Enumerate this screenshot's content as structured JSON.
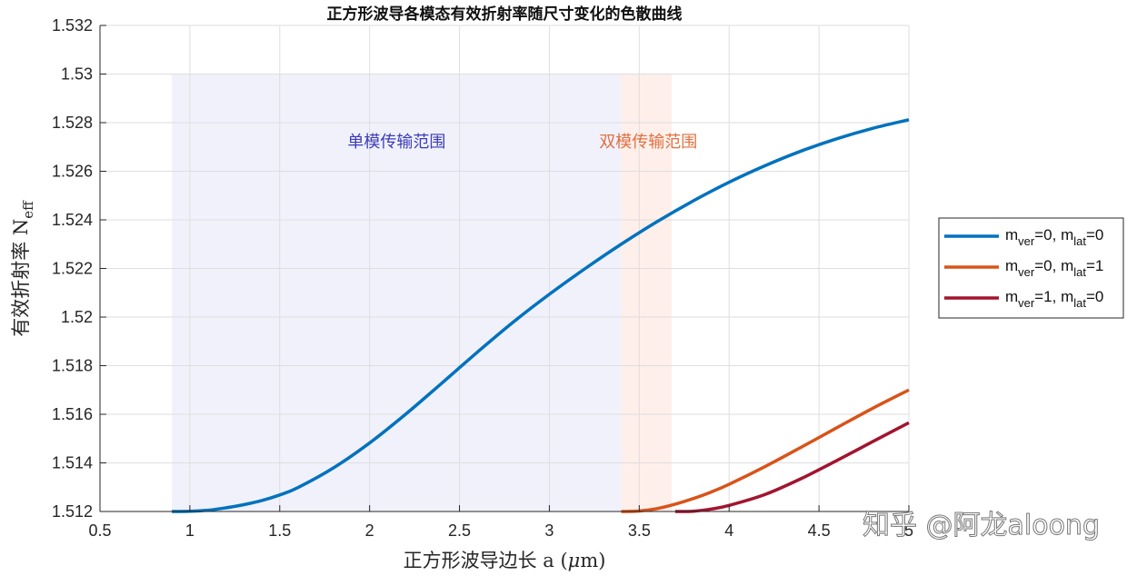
{
  "chart_data": {
    "type": "line",
    "title": "正方形波导各模态有效折射率随尺寸变化的色散曲线",
    "xlabel_text": "正方形波导边长 a (",
    "xlabel_mu": "μ",
    "xlabel_unit": "m)",
    "ylabel_text": "有效折射率 N",
    "ylabel_sub": "eff",
    "xlim": [
      0.5,
      5
    ],
    "ylim": [
      1.512,
      1.532
    ],
    "xticks": [
      0.5,
      1,
      1.5,
      2,
      2.5,
      3,
      3.5,
      4,
      4.5,
      5
    ],
    "xtick_labels": [
      "0.5",
      "1",
      "1.5",
      "2",
      "2.5",
      "3",
      "3.5",
      "4",
      "4.5",
      "5"
    ],
    "yticks": [
      1.512,
      1.514,
      1.516,
      1.518,
      1.52,
      1.522,
      1.524,
      1.526,
      1.528,
      1.53,
      1.532
    ],
    "ytick_labels": [
      "1.512",
      "1.514",
      "1.516",
      "1.518",
      "1.52",
      "1.522",
      "1.524",
      "1.526",
      "1.528",
      "1.53",
      "1.532"
    ],
    "grid": true,
    "legend_position": "outside-right",
    "regions": [
      {
        "label": "单模传输范围",
        "x_range": [
          0.9,
          3.4
        ],
        "y_range": [
          1.512,
          1.53
        ],
        "fill": "#ececfb",
        "text_color": "#3b3bb8",
        "label_at": [
          2.15,
          1.527
        ]
      },
      {
        "label": "双模传输范围",
        "x_range": [
          3.4,
          3.68
        ],
        "y_range": [
          1.512,
          1.53
        ],
        "fill": "#fde9e4",
        "text_color": "#e07040",
        "label_at": [
          3.55,
          1.527
        ]
      }
    ],
    "series": [
      {
        "name": "m_ver=0, m_lat=0",
        "name_parts": [
          "m",
          "ver",
          "=0, m",
          "lat",
          "=0"
        ],
        "color": "#0072bd",
        "x": [
          0.9,
          1.0,
          1.1,
          1.2,
          1.3,
          1.4,
          1.5,
          1.6,
          1.8,
          2.0,
          2.2,
          2.4,
          2.6,
          2.8,
          3.0,
          3.2,
          3.4,
          3.6,
          3.8,
          4.0,
          4.2,
          4.4,
          4.6,
          4.8,
          5.0
        ],
        "y": [
          1.512,
          1.51201,
          1.51205,
          1.51215,
          1.51228,
          1.51245,
          1.51268,
          1.51298,
          1.5138,
          1.51482,
          1.516,
          1.51727,
          1.51856,
          1.5198,
          1.52094,
          1.522,
          1.523,
          1.52393,
          1.52478,
          1.52555,
          1.52623,
          1.52683,
          1.52734,
          1.52777,
          1.52812
        ]
      },
      {
        "name": "m_ver=0, m_lat=1",
        "name_parts": [
          "m",
          "ver",
          "=0, m",
          "lat",
          "=1"
        ],
        "color": "#d95319",
        "x": [
          3.4,
          3.5,
          3.6,
          3.7,
          3.8,
          3.9,
          4.0,
          4.2,
          4.4,
          4.6,
          4.8,
          5.0
        ],
        "y": [
          1.512,
          1.51202,
          1.51212,
          1.5123,
          1.51253,
          1.5128,
          1.51312,
          1.51385,
          1.51464,
          1.51545,
          1.51625,
          1.517
        ]
      },
      {
        "name": "m_ver=1, m_lat=0",
        "name_parts": [
          "m",
          "ver",
          "=1, m",
          "lat",
          "=0"
        ],
        "color": "#a2142f",
        "x": [
          3.7,
          3.8,
          3.9,
          4.0,
          4.2,
          4.4,
          4.6,
          4.8,
          5.0
        ],
        "y": [
          1.512,
          1.51201,
          1.5121,
          1.51225,
          1.5127,
          1.51335,
          1.5141,
          1.51488,
          1.51565
        ]
      }
    ]
  },
  "watermark": "知乎 @阿龙aloong"
}
